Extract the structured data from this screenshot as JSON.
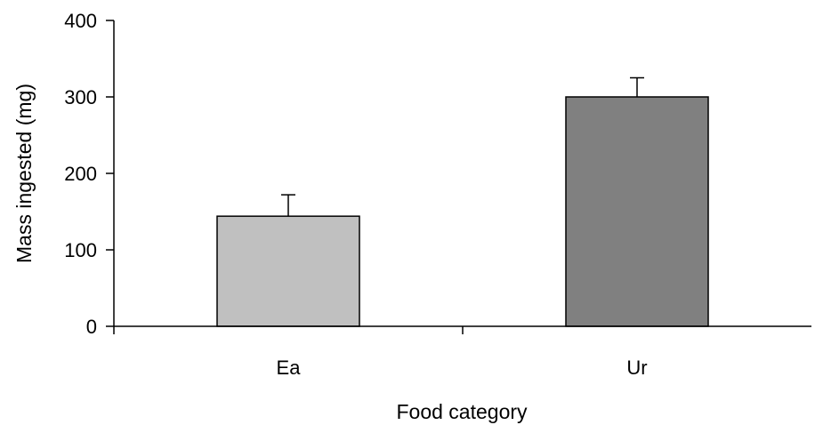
{
  "chart_data": {
    "type": "bar",
    "title": "",
    "xlabel": "Food category",
    "ylabel": "Mass ingested (mg)",
    "categories": [
      "Ea",
      "Ur"
    ],
    "values": [
      144,
      300
    ],
    "errors": [
      28,
      25
    ],
    "ylim": [
      0,
      400
    ],
    "yticks": [
      0,
      100,
      200,
      300,
      400
    ],
    "bar_colors": [
      "#c0c0c0",
      "#808080"
    ],
    "grid": false,
    "legend": "none"
  }
}
